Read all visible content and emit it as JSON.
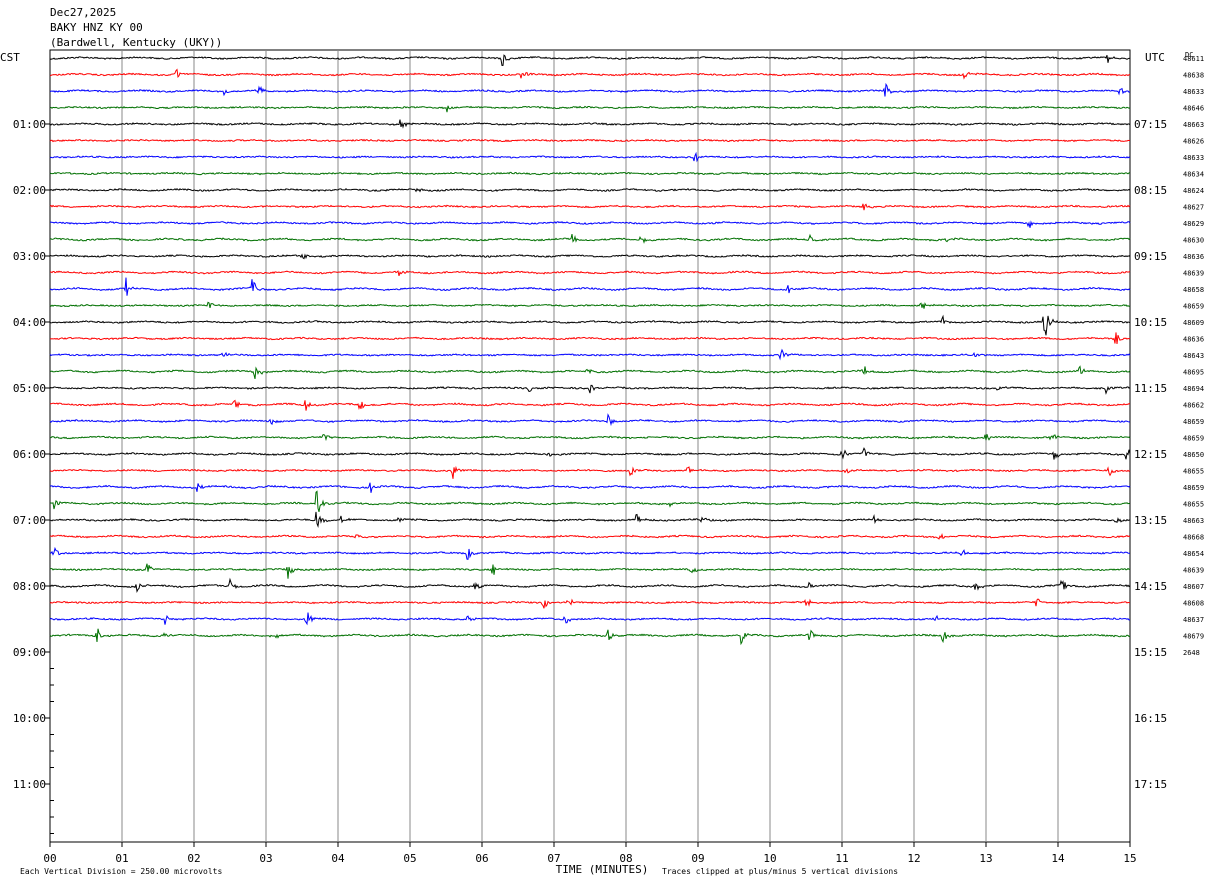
{
  "header": {
    "date": "Dec27,2025",
    "station": "BAKY HNZ KY 00",
    "location": "(Bardwell, Kentucky (UKY))"
  },
  "axes": {
    "left_zone": "CST",
    "right_zone": "UTC",
    "dc_label": "DC",
    "xlabel": "TIME (MINUTES)"
  },
  "footer": {
    "scale_note": "Each Vertical Division =  250.00 microvolts",
    "clip_note": "Traces clipped at plus/minus 5 vertical divisions"
  },
  "colors": {
    "trace_cycle": [
      "#000000",
      "#ff0000",
      "#0000ff",
      "#007000"
    ],
    "grid": "#888888"
  },
  "chart_data": {
    "type": "line",
    "title": "BAKY HNZ KY 00",
    "xlabel": "TIME (MINUTES)",
    "xlim": [
      0,
      15
    ],
    "x_ticks": [
      "00",
      "01",
      "02",
      "03",
      "04",
      "05",
      "06",
      "07",
      "08",
      "09",
      "10",
      "11",
      "12",
      "13",
      "14",
      "15"
    ],
    "minutes_per_row": 15,
    "total_rows": 48,
    "rows_with_data": 36,
    "left_hour_labels": [
      "01:00",
      "02:00",
      "03:00",
      "04:00",
      "05:00",
      "06:00",
      "07:00",
      "08:00",
      "09:00",
      "10:00",
      "11:00"
    ],
    "right_hour_labels": [
      "07:15",
      "08:15",
      "09:15",
      "10:15",
      "11:15",
      "12:15",
      "13:15",
      "14:15",
      "15:15",
      "16:15",
      "17:15"
    ],
    "hour_label_start_row": 4,
    "hour_label_every_rows": 4,
    "dc_offsets": [
      "48611",
      "48638",
      "48633",
      "48646",
      "48663",
      "48626",
      "48633",
      "48634",
      "48624",
      "48627",
      "48629",
      "48630",
      "48636",
      "48639",
      "48658",
      "48659",
      "48609",
      "48636",
      "48643",
      "48695",
      "48694",
      "48662",
      "48659",
      "48659",
      "48650",
      "48655",
      "48659",
      "48655",
      "48663",
      "48668",
      "48654",
      "48639",
      "48607",
      "48608",
      "48637",
      "48679",
      "2648"
    ],
    "events": [
      {
        "row": 0,
        "minute": 6.28,
        "size": 10
      },
      {
        "row": 0,
        "minute": 14.68,
        "size": 7
      },
      {
        "row": 1,
        "minute": 1.75,
        "size": 6
      },
      {
        "row": 1,
        "minute": 6.55,
        "size": 7
      },
      {
        "row": 1,
        "minute": 12.7,
        "size": 8
      },
      {
        "row": 2,
        "minute": 2.4,
        "size": 5
      },
      {
        "row": 2,
        "minute": 2.9,
        "size": 9
      },
      {
        "row": 2,
        "minute": 11.6,
        "size": 10
      },
      {
        "row": 2,
        "minute": 14.85,
        "size": 6
      },
      {
        "row": 3,
        "minute": 5.5,
        "size": 8
      },
      {
        "row": 4,
        "minute": 4.87,
        "size": 8
      },
      {
        "row": 6,
        "minute": 8.95,
        "size": 8
      },
      {
        "row": 8,
        "minute": 5.1,
        "size": 4
      },
      {
        "row": 9,
        "minute": 11.3,
        "size": 5
      },
      {
        "row": 10,
        "minute": 13.6,
        "size": 8
      },
      {
        "row": 11,
        "minute": 7.25,
        "size": 5
      },
      {
        "row": 11,
        "minute": 8.2,
        "size": 7
      },
      {
        "row": 11,
        "minute": 10.55,
        "size": 8
      },
      {
        "row": 11,
        "minute": 12.45,
        "size": 4
      },
      {
        "row": 12,
        "minute": 3.5,
        "size": 7
      },
      {
        "row": 13,
        "minute": 4.85,
        "size": 5
      },
      {
        "row": 14,
        "minute": 1.05,
        "size": 12
      },
      {
        "row": 14,
        "minute": 2.8,
        "size": 14
      },
      {
        "row": 14,
        "minute": 10.25,
        "size": 6
      },
      {
        "row": 15,
        "minute": 2.2,
        "size": 5
      },
      {
        "row": 15,
        "minute": 12.1,
        "size": 6
      },
      {
        "row": 16,
        "minute": 12.4,
        "size": 8
      },
      {
        "row": 16,
        "minute": 13.8,
        "size": 28
      },
      {
        "row": 17,
        "minute": 14.8,
        "size": 7
      },
      {
        "row": 18,
        "minute": 2.4,
        "size": 6
      },
      {
        "row": 18,
        "minute": 10.15,
        "size": 7
      },
      {
        "row": 18,
        "minute": 12.8,
        "size": 5
      },
      {
        "row": 19,
        "minute": 2.85,
        "size": 8
      },
      {
        "row": 19,
        "minute": 7.45,
        "size": 7
      },
      {
        "row": 19,
        "minute": 11.3,
        "size": 9
      },
      {
        "row": 19,
        "minute": 14.3,
        "size": 6
      },
      {
        "row": 20,
        "minute": 6.65,
        "size": 5
      },
      {
        "row": 20,
        "minute": 7.5,
        "size": 5
      },
      {
        "row": 20,
        "minute": 13.15,
        "size": 5
      },
      {
        "row": 20,
        "minute": 14.65,
        "size": 9
      },
      {
        "row": 21,
        "minute": 2.55,
        "size": 9
      },
      {
        "row": 21,
        "minute": 3.55,
        "size": 8
      },
      {
        "row": 21,
        "minute": 4.3,
        "size": 7
      },
      {
        "row": 22,
        "minute": 3.05,
        "size": 7
      },
      {
        "row": 22,
        "minute": 7.75,
        "size": 8
      },
      {
        "row": 23,
        "minute": 3.8,
        "size": 7
      },
      {
        "row": 23,
        "minute": 13.0,
        "size": 6
      },
      {
        "row": 23,
        "minute": 13.9,
        "size": 6
      },
      {
        "row": 24,
        "minute": 6.9,
        "size": 6
      },
      {
        "row": 24,
        "minute": 11.0,
        "size": 9
      },
      {
        "row": 24,
        "minute": 11.3,
        "size": 6
      },
      {
        "row": 24,
        "minute": 13.95,
        "size": 8
      },
      {
        "row": 24,
        "minute": 14.95,
        "size": 10
      },
      {
        "row": 25,
        "minute": 5.6,
        "size": 9
      },
      {
        "row": 25,
        "minute": 8.05,
        "size": 8
      },
      {
        "row": 25,
        "minute": 8.85,
        "size": 6
      },
      {
        "row": 25,
        "minute": 11.05,
        "size": 5
      },
      {
        "row": 25,
        "minute": 14.7,
        "size": 8
      },
      {
        "row": 26,
        "minute": 2.05,
        "size": 6
      },
      {
        "row": 26,
        "minute": 4.45,
        "size": 7
      },
      {
        "row": 26,
        "minute": 10.75,
        "size": 6
      },
      {
        "row": 27,
        "minute": 0.05,
        "size": 6
      },
      {
        "row": 27,
        "minute": 3.7,
        "size": 22
      },
      {
        "row": 27,
        "minute": 8.6,
        "size": 5
      },
      {
        "row": 28,
        "minute": 3.7,
        "size": 14
      },
      {
        "row": 28,
        "minute": 4.05,
        "size": 6
      },
      {
        "row": 28,
        "minute": 4.8,
        "size": 8
      },
      {
        "row": 28,
        "minute": 8.15,
        "size": 10
      },
      {
        "row": 28,
        "minute": 9.05,
        "size": 6
      },
      {
        "row": 28,
        "minute": 11.45,
        "size": 7
      },
      {
        "row": 28,
        "minute": 14.8,
        "size": 7
      },
      {
        "row": 29,
        "minute": 4.25,
        "size": 5
      },
      {
        "row": 29,
        "minute": 12.35,
        "size": 5
      },
      {
        "row": 30,
        "minute": 0.05,
        "size": 8
      },
      {
        "row": 30,
        "minute": 5.8,
        "size": 8
      },
      {
        "row": 30,
        "minute": 12.65,
        "size": 6
      },
      {
        "row": 31,
        "minute": 1.35,
        "size": 9
      },
      {
        "row": 31,
        "minute": 3.3,
        "size": 11
      },
      {
        "row": 31,
        "minute": 6.15,
        "size": 8
      },
      {
        "row": 31,
        "minute": 8.9,
        "size": 7
      },
      {
        "row": 32,
        "minute": 1.2,
        "size": 8
      },
      {
        "row": 32,
        "minute": 2.5,
        "size": 8
      },
      {
        "row": 32,
        "minute": 5.9,
        "size": 7
      },
      {
        "row": 32,
        "minute": 10.55,
        "size": 9
      },
      {
        "row": 32,
        "minute": 12.85,
        "size": 8
      },
      {
        "row": 32,
        "minute": 14.05,
        "size": 9
      },
      {
        "row": 33,
        "minute": 6.85,
        "size": 8
      },
      {
        "row": 33,
        "minute": 7.2,
        "size": 8
      },
      {
        "row": 33,
        "minute": 10.5,
        "size": 8
      },
      {
        "row": 33,
        "minute": 13.7,
        "size": 6
      },
      {
        "row": 34,
        "minute": 1.6,
        "size": 7
      },
      {
        "row": 34,
        "minute": 3.55,
        "size": 14
      },
      {
        "row": 34,
        "minute": 5.8,
        "size": 6
      },
      {
        "row": 34,
        "minute": 7.15,
        "size": 8
      },
      {
        "row": 34,
        "minute": 12.3,
        "size": 6
      },
      {
        "row": 35,
        "minute": 0.65,
        "size": 10
      },
      {
        "row": 35,
        "minute": 1.55,
        "size": 7
      },
      {
        "row": 35,
        "minute": 3.1,
        "size": 6
      },
      {
        "row": 35,
        "minute": 7.75,
        "size": 7
      },
      {
        "row": 35,
        "minute": 9.6,
        "size": 10
      },
      {
        "row": 35,
        "minute": 10.55,
        "size": 8
      },
      {
        "row": 35,
        "minute": 12.4,
        "size": 9
      }
    ]
  }
}
